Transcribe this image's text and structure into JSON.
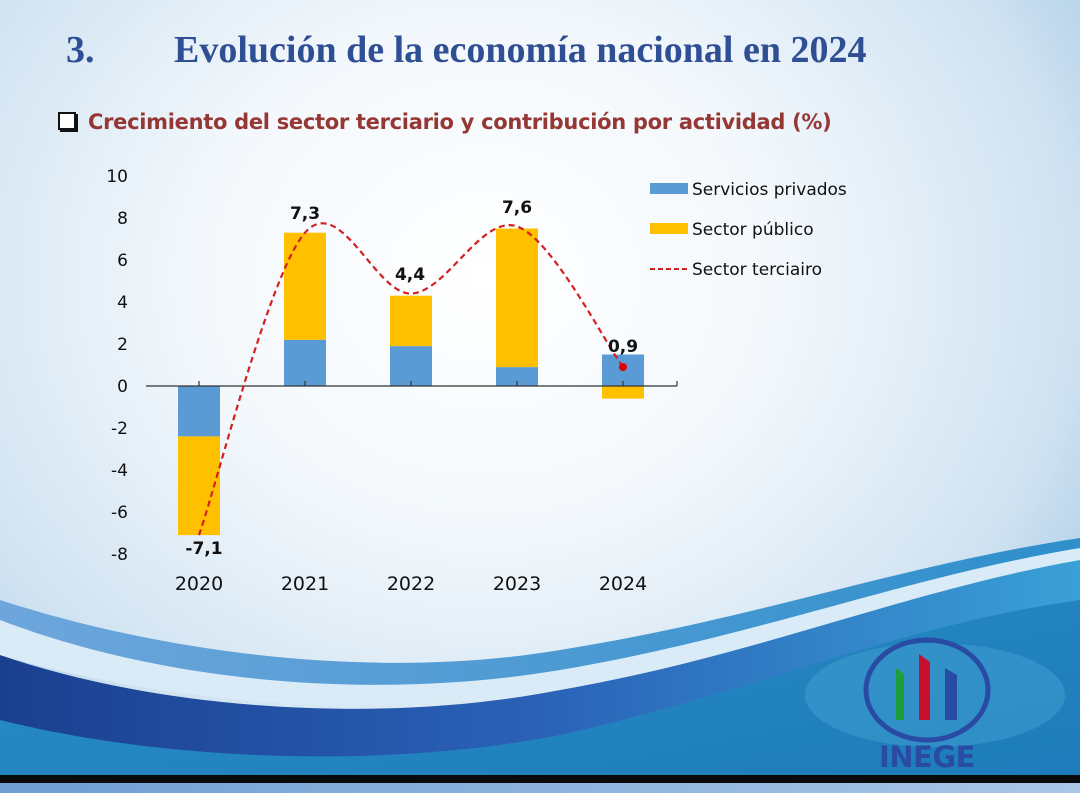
{
  "slide": {
    "section_number": "3.",
    "title": "Evolución de la economía nacional en 2024",
    "subtitle": "Crecimiento del sector terciario y contribución por actividad (%)",
    "logo_text": "INEGE"
  },
  "colors": {
    "title": "#2f4f94",
    "subtitle": "#953734",
    "servicios_privados": "#5b9bd5",
    "sector_publico": "#ffc000",
    "sector_terciario": "#d42020",
    "logo_green": "#1e9e3a",
    "logo_red": "#c8102e",
    "logo_blue": "#2a4ba3"
  },
  "chart_data": {
    "type": "bar",
    "stacked": true,
    "title": "Crecimiento del sector terciario y contribución por actividad (%)",
    "xlabel": "",
    "ylabel": "",
    "ylim": [
      -8,
      10
    ],
    "yticks": [
      10,
      8,
      6,
      4,
      2,
      0,
      -2,
      -4,
      -6,
      -8
    ],
    "categories": [
      "2020",
      "2021",
      "2022",
      "2023",
      "2024"
    ],
    "series": [
      {
        "name": "Servicios privados",
        "kind": "bar",
        "values": [
          -2.4,
          2.2,
          1.9,
          0.9,
          1.5
        ]
      },
      {
        "name": "Sector público",
        "kind": "bar",
        "values": [
          -4.7,
          5.1,
          2.4,
          6.6,
          -0.6
        ]
      },
      {
        "name": "Sector terciairo",
        "kind": "line",
        "style": "dashed-smooth",
        "values": [
          -7.1,
          7.3,
          4.4,
          7.6,
          0.9
        ]
      }
    ],
    "data_labels": [
      "-7,1",
      "7,3",
      "4,4",
      "7,6",
      "0,9"
    ],
    "legend": [
      "Servicios privados",
      "Sector público",
      "Sector terciairo"
    ],
    "legend_position": "top-right",
    "grid": false
  }
}
